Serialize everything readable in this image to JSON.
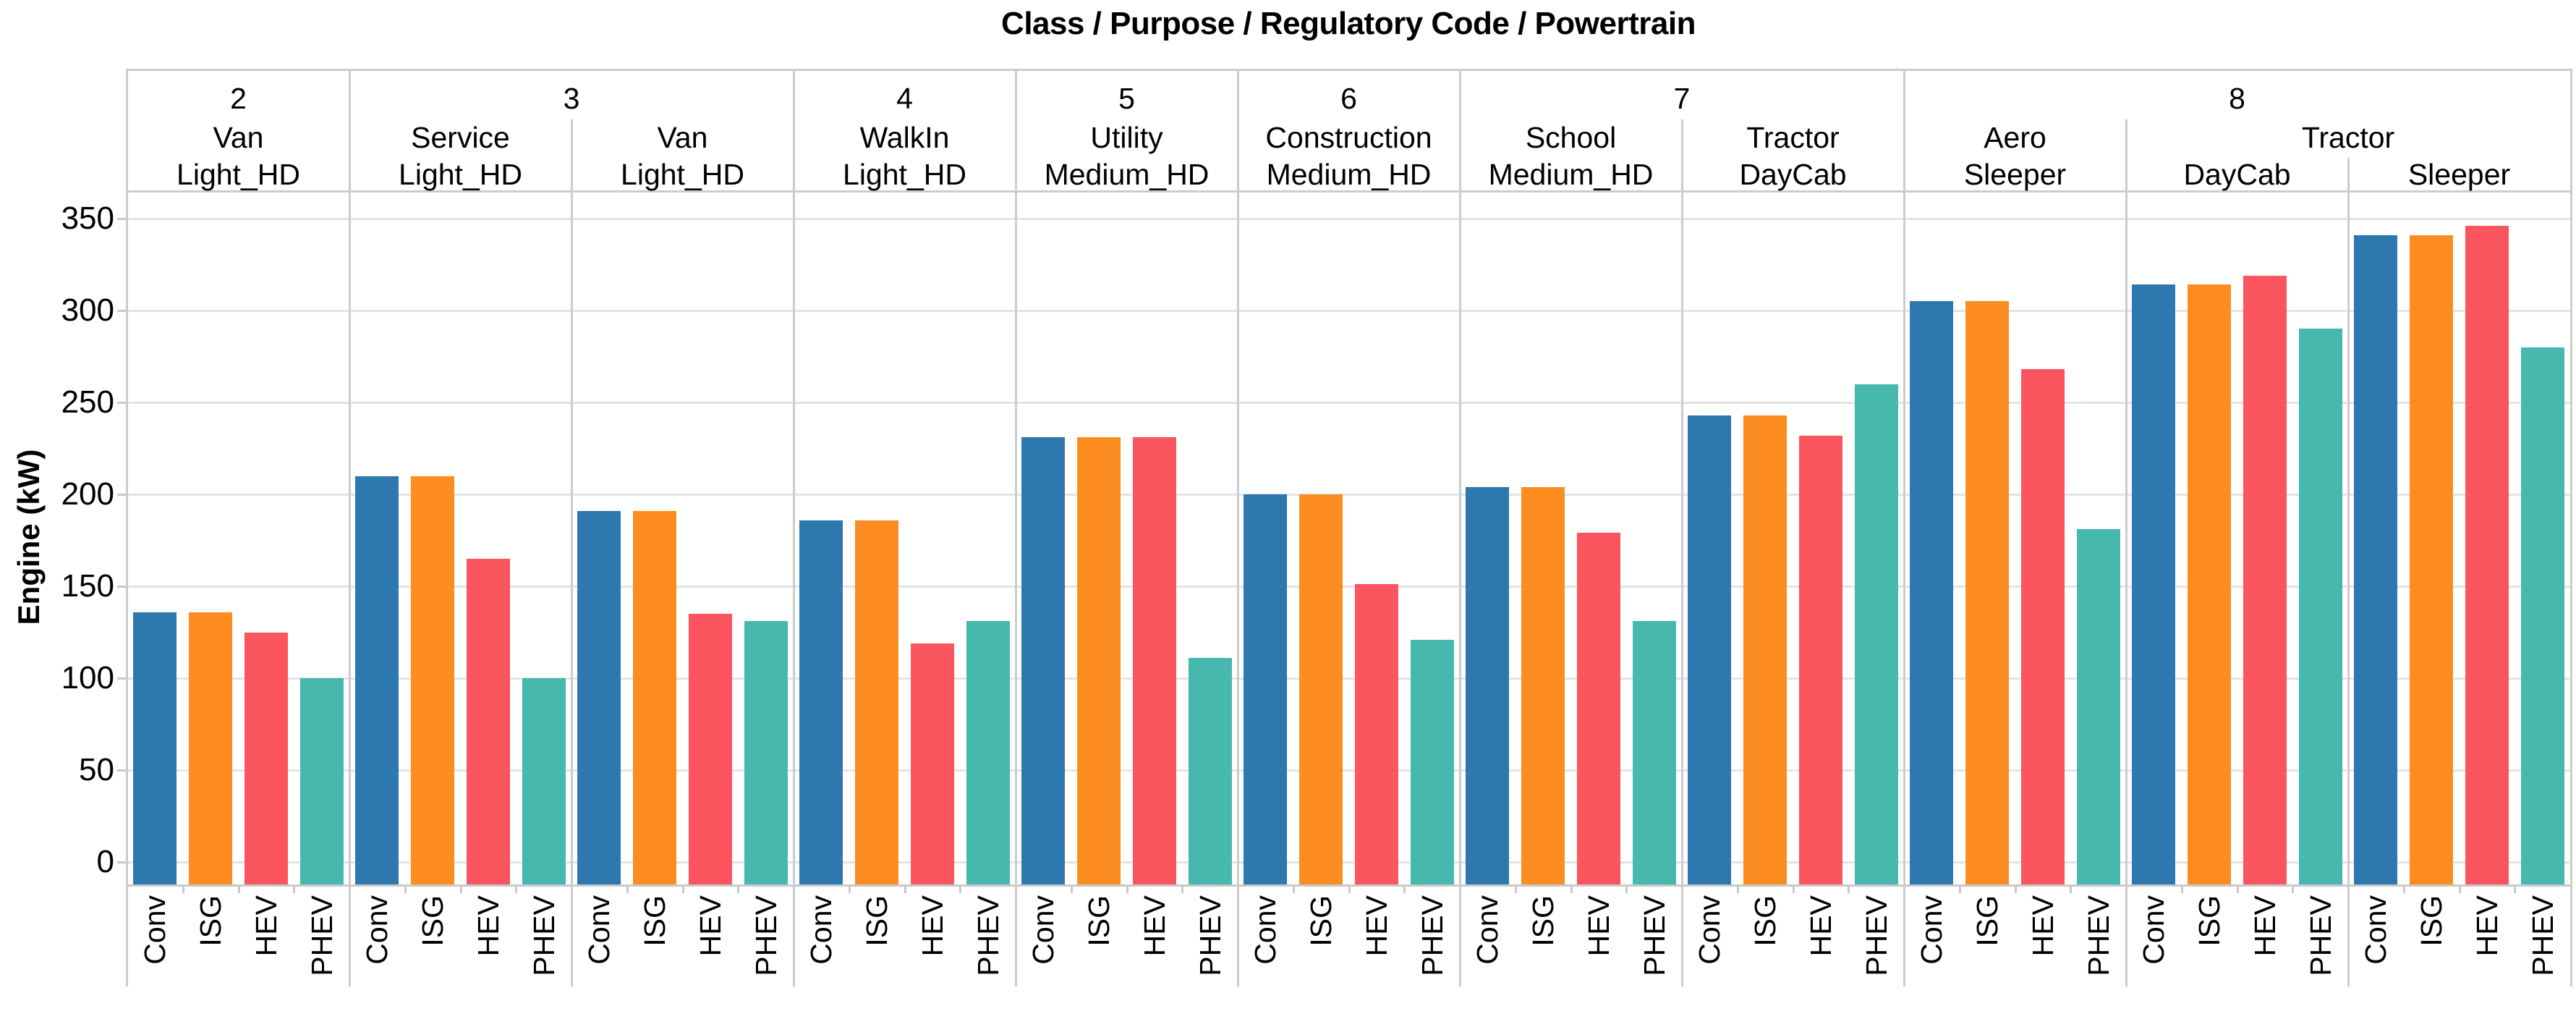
{
  "title": "Class / Purpose / Regulatory Code / Powertrain",
  "y_axis": {
    "label": "Engine (kW)",
    "ticks": [
      0,
      50,
      100,
      150,
      200,
      250,
      300,
      350
    ]
  },
  "colors": {
    "conv": "#2d78af",
    "isg": "#fd8d20",
    "hev": "#fb555f",
    "phev": "#46b8ae",
    "gridline": "#e4e4e4",
    "divider": "#cccccc",
    "text": "#000000"
  },
  "chart_data": {
    "type": "bar",
    "title": "Class / Purpose / Regulatory Code / Powertrain",
    "xlabel": "",
    "ylabel": "Engine (kW)",
    "ylim": [
      0,
      350
    ],
    "grid": true,
    "legend": "none",
    "powertrains": [
      "Conv",
      "ISG",
      "HEV",
      "PHEV"
    ],
    "series_colors": [
      "#2d78af",
      "#fd8d20",
      "#fb555f",
      "#46b8ae"
    ],
    "groups": [
      {
        "class": "2",
        "purpose": "Van",
        "code": "Light_HD",
        "values": [
          136,
          136,
          125,
          100
        ]
      },
      {
        "class": "3",
        "purpose": "Service",
        "code": "Light_HD",
        "values": [
          210,
          210,
          165,
          100
        ]
      },
      {
        "class": "3",
        "purpose": "Van",
        "code": "Light_HD",
        "values": [
          191,
          191,
          135,
          131
        ]
      },
      {
        "class": "4",
        "purpose": "WalkIn",
        "code": "Light_HD",
        "values": [
          186,
          186,
          119,
          131
        ]
      },
      {
        "class": "5",
        "purpose": "Utility",
        "code": "Medium_HD",
        "values": [
          231,
          231,
          231,
          111
        ]
      },
      {
        "class": "6",
        "purpose": "Construction",
        "code": "Medium_HD",
        "values": [
          200,
          200,
          151,
          121
        ]
      },
      {
        "class": "7",
        "purpose": "School",
        "code": "Medium_HD",
        "values": [
          204,
          204,
          179,
          131
        ]
      },
      {
        "class": "7",
        "purpose": "Tractor",
        "code": "DayCab",
        "values": [
          243,
          243,
          232,
          260
        ]
      },
      {
        "class": "8",
        "purpose": "Aero",
        "code": "Sleeper",
        "values": [
          305,
          305,
          268,
          181
        ]
      },
      {
        "class": "8",
        "purpose": "Tractor",
        "code": "DayCab",
        "values": [
          314,
          314,
          319,
          290
        ]
      },
      {
        "class": "8",
        "purpose": "Tractor",
        "code": "Sleeper",
        "values": [
          341,
          341,
          346,
          280
        ]
      }
    ]
  }
}
